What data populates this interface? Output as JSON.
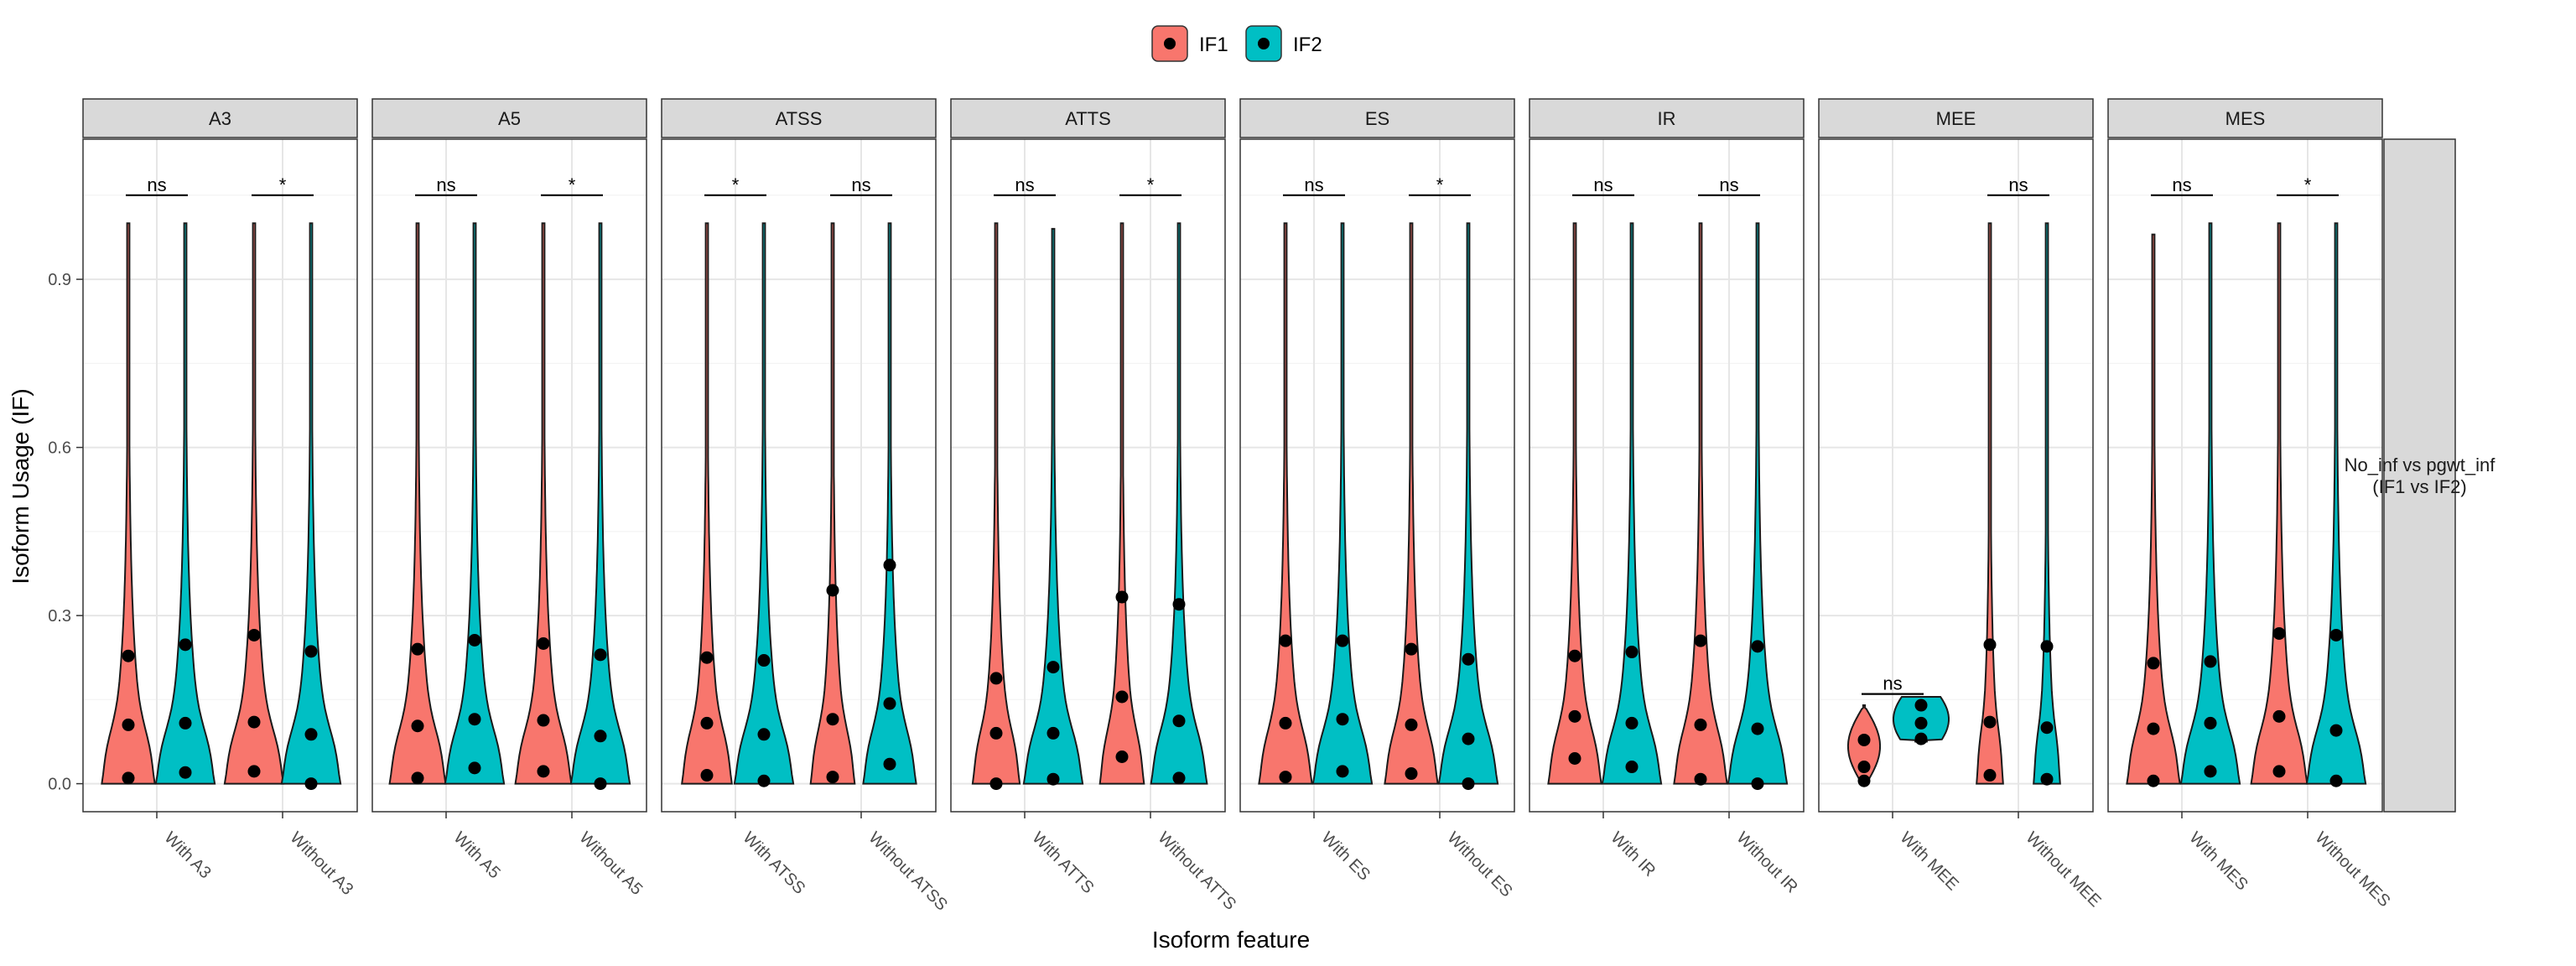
{
  "chart_data": {
    "type": "violin",
    "xlabel": "Isoform feature",
    "ylabel": "Isoform Usage (IF)",
    "ylim": [
      -0.05,
      1.15
    ],
    "y_ticks": [
      "0.0",
      "0.3",
      "0.6",
      "0.9"
    ],
    "y_tick_values": [
      0.0,
      0.3,
      0.6,
      0.9
    ],
    "row_strip": "No_inf vs pgwt_inf\n(IF1 vs IF2)",
    "legend": {
      "position": "top",
      "entries": [
        {
          "name": "IF1",
          "color": "#F8766D"
        },
        {
          "name": "IF2",
          "color": "#00BFC4"
        }
      ]
    },
    "grid": true,
    "facets": [
      {
        "name": "A3",
        "categories": [
          "With A3",
          "Without A3"
        ],
        "groups": [
          {
            "sig": "ns",
            "IF1": {
              "max": 1.0,
              "points": [
                0.01,
                0.105,
                0.228
              ],
              "peak": 0.9
            },
            "IF2": {
              "max": 1.0,
              "points": [
                0.02,
                0.108,
                0.248
              ],
              "peak": 1.0
            }
          },
          {
            "sig": "*",
            "IF1": {
              "max": 1.0,
              "points": [
                0.022,
                0.11,
                0.265
              ],
              "peak": 1.0
            },
            "IF2": {
              "max": 1.0,
              "points": [
                0.0,
                0.088,
                0.236
              ],
              "peak": 1.0
            }
          }
        ]
      },
      {
        "name": "A5",
        "categories": [
          "With A5",
          "Without A5"
        ],
        "groups": [
          {
            "sig": "ns",
            "IF1": {
              "max": 1.0,
              "points": [
                0.01,
                0.103,
                0.24
              ],
              "peak": 0.95
            },
            "IF2": {
              "max": 1.0,
              "points": [
                0.028,
                0.115,
                0.256
              ],
              "peak": 1.0
            }
          },
          {
            "sig": "*",
            "IF1": {
              "max": 1.0,
              "points": [
                0.022,
                0.113,
                0.25
              ],
              "peak": 0.95
            },
            "IF2": {
              "max": 1.0,
              "points": [
                0.0,
                0.085,
                0.23
              ],
              "peak": 1.0
            }
          }
        ]
      },
      {
        "name": "ATSS",
        "categories": [
          "With ATSS",
          "Without ATSS"
        ],
        "groups": [
          {
            "sig": "*",
            "IF1": {
              "max": 1.0,
              "points": [
                0.015,
                0.108,
                0.225
              ],
              "peak": 0.85
            },
            "IF2": {
              "max": 1.0,
              "points": [
                0.005,
                0.088,
                0.22
              ],
              "peak": 1.0
            }
          },
          {
            "sig": "ns",
            "IF1": {
              "max": 1.0,
              "points": [
                0.012,
                0.115,
                0.345
              ],
              "peak": 0.75
            },
            "IF2": {
              "max": 1.0,
              "points": [
                0.035,
                0.143,
                0.39
              ],
              "peak": 0.9
            }
          }
        ]
      },
      {
        "name": "ATTS",
        "categories": [
          "With ATTS",
          "Without ATTS"
        ],
        "groups": [
          {
            "sig": "ns",
            "IF1": {
              "max": 1.0,
              "points": [
                0.0,
                0.09,
                0.188
              ],
              "peak": 0.8
            },
            "IF2": {
              "max": 0.99,
              "points": [
                0.008,
                0.09,
                0.208
              ],
              "peak": 1.0
            }
          },
          {
            "sig": "*",
            "IF1": {
              "max": 1.0,
              "points": [
                0.048,
                0.155,
                0.333
              ],
              "peak": 0.75
            },
            "IF2": {
              "max": 1.0,
              "points": [
                0.01,
                0.112,
                0.32
              ],
              "peak": 0.95
            }
          }
        ]
      },
      {
        "name": "ES",
        "categories": [
          "With ES",
          "Without ES"
        ],
        "groups": [
          {
            "sig": "ns",
            "IF1": {
              "max": 1.0,
              "points": [
                0.012,
                0.108,
                0.255
              ],
              "peak": 0.9
            },
            "IF2": {
              "max": 1.0,
              "points": [
                0.022,
                0.115,
                0.255
              ],
              "peak": 1.0
            }
          },
          {
            "sig": "*",
            "IF1": {
              "max": 1.0,
              "points": [
                0.018,
                0.105,
                0.24
              ],
              "peak": 0.9
            },
            "IF2": {
              "max": 1.0,
              "points": [
                0.0,
                0.08,
                0.222
              ],
              "peak": 1.0
            }
          }
        ]
      },
      {
        "name": "IR",
        "categories": [
          "With IR",
          "Without IR"
        ],
        "groups": [
          {
            "sig": "ns",
            "IF1": {
              "max": 1.0,
              "points": [
                0.045,
                0.12,
                0.228
              ],
              "peak": 0.9
            },
            "IF2": {
              "max": 1.0,
              "points": [
                0.03,
                0.108,
                0.235
              ],
              "peak": 1.0
            }
          },
          {
            "sig": "ns",
            "IF1": {
              "max": 1.0,
              "points": [
                0.008,
                0.105,
                0.255
              ],
              "peak": 0.9
            },
            "IF2": {
              "max": 1.0,
              "points": [
                0.0,
                0.098,
                0.245
              ],
              "peak": 1.0
            }
          }
        ]
      },
      {
        "name": "MEE",
        "categories": [
          "With MEE",
          "Without MEE"
        ],
        "groups": [
          {
            "sig": "ns",
            "sig_y": 0.16,
            "IF1": {
              "max": 0.14,
              "min": 0.0,
              "points": [
                0.005,
                0.03,
                0.078
              ],
              "peak": 0.55,
              "shape": "mee1"
            },
            "IF2": {
              "max": 0.155,
              "min": 0.075,
              "points": [
                0.08,
                0.108,
                0.14
              ],
              "peak": 1.0,
              "shape": "mee2"
            }
          },
          {
            "sig": "ns",
            "IF1": {
              "max": 1.0,
              "points": [
                0.015,
                0.11,
                0.248
              ],
              "peak": 0.45
            },
            "IF2": {
              "max": 1.0,
              "points": [
                0.008,
                0.1,
                0.245
              ],
              "peak": 0.45
            }
          }
        ]
      },
      {
        "name": "MES",
        "categories": [
          "With MES",
          "Without MES"
        ],
        "groups": [
          {
            "sig": "ns",
            "IF1": {
              "max": 0.98,
              "points": [
                0.005,
                0.098,
                0.215
              ],
              "peak": 0.9
            },
            "IF2": {
              "max": 1.0,
              "points": [
                0.022,
                0.108,
                0.218
              ],
              "peak": 1.0
            }
          },
          {
            "sig": "*",
            "IF1": {
              "max": 1.0,
              "points": [
                0.022,
                0.12,
                0.268
              ],
              "peak": 0.95
            },
            "IF2": {
              "max": 1.0,
              "points": [
                0.005,
                0.095,
                0.265
              ],
              "peak": 1.0
            }
          }
        ]
      }
    ]
  }
}
